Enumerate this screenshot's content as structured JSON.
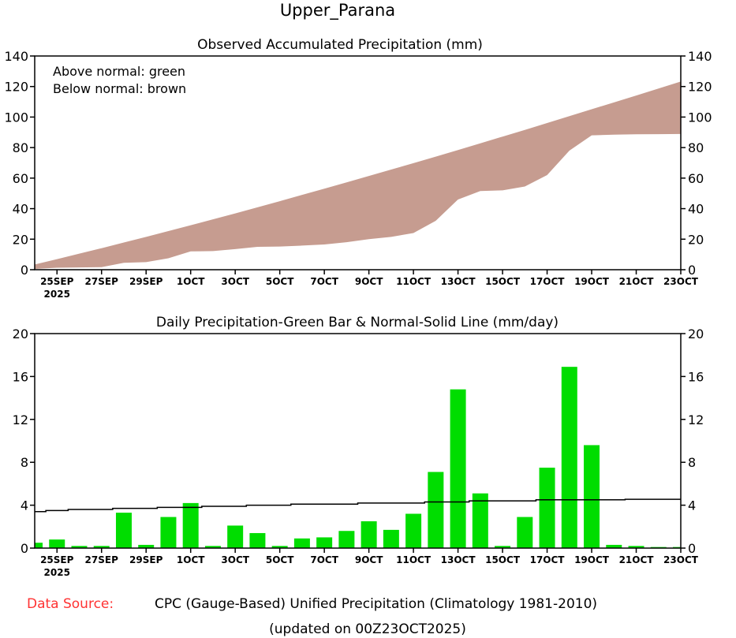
{
  "title": "Upper_Parana",
  "footer": {
    "source_label": "Data Source:",
    "source_text": "CPC (Gauge-Based) Unified Precipitation (Climatology 1981-2010)",
    "updated": "(updated on 00Z23OCT2025)",
    "source_label_color": "#ff3333"
  },
  "chart_data": [
    {
      "type": "area",
      "title": "Observed Accumulated Precipitation (mm)",
      "legend": [
        "Above normal: green",
        "Below normal: brown"
      ],
      "legend_placement": "top-left",
      "ylim": [
        0,
        140
      ],
      "yticks": [
        "0",
        "20",
        "40",
        "60",
        "80",
        "100",
        "120",
        "140"
      ],
      "xticks": [
        "25SEP",
        "27SEP",
        "29SEP",
        "1OCT",
        "3OCT",
        "5OCT",
        "7OCT",
        "9OCT",
        "11OCT",
        "13OCT",
        "15OCT",
        "17OCT",
        "19OCT",
        "21OCT",
        "23OCT"
      ],
      "xtick_year": "2025",
      "x_start": "24SEP2025",
      "x_end": "23OCT2025",
      "colors": {
        "below": "#c69c90",
        "above": "#00dd00"
      },
      "series": [
        {
          "name": "Observed accumulated",
          "values": [
            0.5,
            1.3,
            1.5,
            1.7,
            4.5,
            5.0,
            7.5,
            12.0,
            12.2,
            13.5,
            15.0,
            15.2,
            15.8,
            16.5,
            18.0,
            20.0,
            21.5,
            24.0,
            32.0,
            46.0,
            51.5,
            52.0,
            54.5,
            62.0,
            78.0,
            88.0,
            88.5,
            88.7,
            88.8,
            88.9
          ]
        },
        {
          "name": "Normal accumulated",
          "values": [
            3.4,
            6.9,
            10.5,
            14.1,
            17.8,
            21.5,
            25.3,
            29.1,
            33.0,
            36.9,
            40.9,
            44.9,
            49.0,
            53.1,
            57.2,
            61.4,
            65.6,
            69.8,
            74.1,
            78.4,
            82.8,
            87.2,
            91.6,
            96.1,
            100.6,
            105.1,
            109.6,
            114.1,
            118.7,
            123.3
          ]
        }
      ]
    },
    {
      "type": "bar",
      "title": "Daily Precipitation-Green Bar & Normal-Solid Line (mm/day)",
      "ylim": [
        0,
        20
      ],
      "yticks": [
        "0",
        "4",
        "8",
        "12",
        "16",
        "20"
      ],
      "xticks": [
        "25SEP",
        "27SEP",
        "29SEP",
        "1OCT",
        "3OCT",
        "5OCT",
        "7OCT",
        "9OCT",
        "11OCT",
        "13OCT",
        "15OCT",
        "17OCT",
        "19OCT",
        "21OCT",
        "23OCT"
      ],
      "xtick_year": "2025",
      "x_start": "24SEP2025",
      "x_end": "23OCT2025",
      "colors": {
        "bar": "#00dd00",
        "line": "#000000"
      },
      "series": [
        {
          "name": "Daily precipitation",
          "values": [
            0.5,
            0.8,
            0.2,
            0.2,
            3.3,
            0.3,
            2.9,
            4.2,
            0.2,
            2.1,
            1.4,
            0.2,
            0.9,
            1.0,
            1.6,
            2.5,
            1.7,
            3.2,
            7.1,
            14.8,
            5.1,
            0.2,
            2.9,
            7.5,
            16.9,
            9.6,
            0.3,
            0.2,
            0.1,
            0.1
          ]
        },
        {
          "name": "Normal",
          "values": [
            3.4,
            3.5,
            3.6,
            3.6,
            3.7,
            3.7,
            3.8,
            3.8,
            3.9,
            3.9,
            4.0,
            4.0,
            4.1,
            4.1,
            4.1,
            4.2,
            4.2,
            4.2,
            4.3,
            4.3,
            4.4,
            4.4,
            4.4,
            4.5,
            4.5,
            4.5,
            4.5,
            4.55,
            4.55,
            4.55
          ]
        }
      ]
    }
  ]
}
